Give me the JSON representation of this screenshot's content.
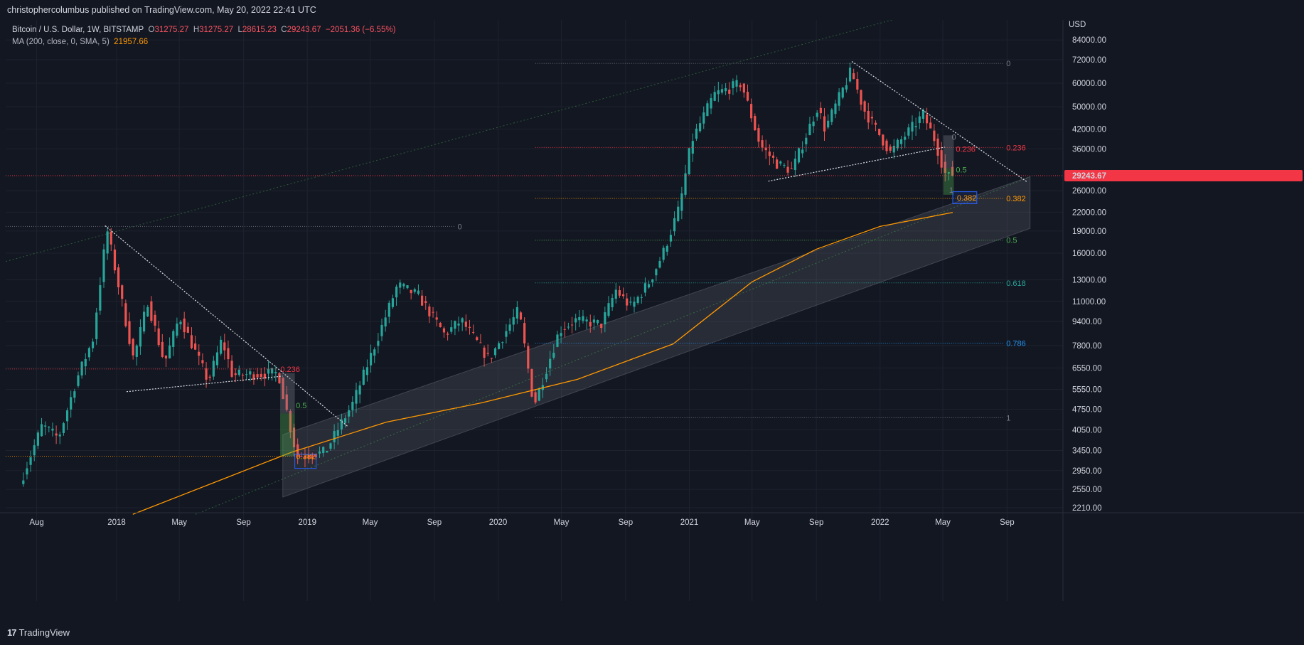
{
  "header": {
    "publisher_line": "christophercolumbus published on TradingView.com, May 20, 2022 22:41 UTC"
  },
  "legend": {
    "symbol_line": "Bitcoin / U.S. Dollar, 1W, BITSTAMP",
    "open_label": "O",
    "open": "31275.27",
    "high_label": "H",
    "high": "31275.27",
    "low_label": "L",
    "low": "28615.23",
    "close_label": "C",
    "close": "29243.67",
    "change": "−2051.36 (−6.55%)",
    "ma_label": "MA (200, close, 0, SMA, 5)",
    "ma_value": "21957.66"
  },
  "footer": {
    "logo_text": "TradingView",
    "logo_mark": "17"
  },
  "colors": {
    "background": "#131722",
    "up": "#26a69a",
    "down": "#ef5350",
    "ma": "#ff9800",
    "price_tag": "#f23645"
  },
  "chart_data": {
    "type": "candlestick",
    "title": "Bitcoin / U.S. Dollar, 1W, BITSTAMP",
    "currency_label": "USD",
    "scale": "log",
    "ylim": [
      2100,
      95000
    ],
    "y_ticks": [
      "84000.00",
      "72000.00",
      "60000.00",
      "50000.00",
      "42000.00",
      "36000.00",
      "26000.00",
      "22000.00",
      "19000.00",
      "16000.00",
      "13000.00",
      "11000.00",
      "9400.00",
      "7800.00",
      "6550.00",
      "5550.00",
      "4750.00",
      "4050.00",
      "3450.00",
      "2950.00",
      "2550.00",
      "2210.00"
    ],
    "x_ticks": [
      "Aug",
      "2018",
      "May",
      "Sep",
      "2019",
      "May",
      "Sep",
      "2020",
      "May",
      "Sep",
      "2021",
      "May",
      "Sep",
      "2022",
      "May",
      "Sep"
    ],
    "last_price": "29243.67",
    "grid": true,
    "price_anchors": [
      {
        "date": "2017-07-01",
        "price": 2600
      },
      {
        "date": "2017-08-15",
        "price": 4200
      },
      {
        "date": "2017-09-15",
        "price": 3800
      },
      {
        "date": "2017-10-20",
        "price": 6000
      },
      {
        "date": "2017-11-20",
        "price": 8200
      },
      {
        "date": "2017-12-17",
        "price": 19300
      },
      {
        "date": "2018-02-06",
        "price": 7000
      },
      {
        "date": "2018-03-05",
        "price": 11000
      },
      {
        "date": "2018-04-06",
        "price": 6800
      },
      {
        "date": "2018-05-05",
        "price": 9800
      },
      {
        "date": "2018-06-29",
        "price": 5900
      },
      {
        "date": "2018-07-25",
        "price": 8200
      },
      {
        "date": "2018-08-14",
        "price": 6200
      },
      {
        "date": "2018-11-10",
        "price": 6300
      },
      {
        "date": "2018-12-15",
        "price": 3300
      },
      {
        "date": "2019-02-07",
        "price": 3400
      },
      {
        "date": "2019-04-02",
        "price": 5000
      },
      {
        "date": "2019-06-26",
        "price": 12500
      },
      {
        "date": "2019-08-05",
        "price": 11500
      },
      {
        "date": "2019-09-24",
        "price": 8500
      },
      {
        "date": "2019-10-26",
        "price": 9500
      },
      {
        "date": "2019-12-18",
        "price": 7000
      },
      {
        "date": "2020-02-13",
        "price": 10300
      },
      {
        "date": "2020-03-13",
        "price": 4900
      },
      {
        "date": "2020-05-01",
        "price": 8800
      },
      {
        "date": "2020-06-01",
        "price": 9500
      },
      {
        "date": "2020-07-20",
        "price": 9200
      },
      {
        "date": "2020-08-17",
        "price": 12000
      },
      {
        "date": "2020-09-15",
        "price": 10500
      },
      {
        "date": "2020-10-21",
        "price": 12900
      },
      {
        "date": "2020-11-15",
        "price": 16000
      },
      {
        "date": "2020-12-17",
        "price": 23000
      },
      {
        "date": "2021-01-08",
        "price": 38000
      },
      {
        "date": "2021-02-21",
        "price": 55000
      },
      {
        "date": "2021-04-14",
        "price": 60000
      },
      {
        "date": "2021-05-20",
        "price": 37000
      },
      {
        "date": "2021-06-22",
        "price": 32000
      },
      {
        "date": "2021-07-20",
        "price": 30500
      },
      {
        "date": "2021-09-07",
        "price": 50000
      },
      {
        "date": "2021-09-21",
        "price": 42000
      },
      {
        "date": "2021-11-10",
        "price": 66000
      },
      {
        "date": "2021-12-04",
        "price": 49000
      },
      {
        "date": "2022-01-24",
        "price": 35000
      },
      {
        "date": "2022-03-28",
        "price": 47000
      },
      {
        "date": "2022-04-18",
        "price": 39000
      },
      {
        "date": "2022-05-12",
        "price": 28615
      },
      {
        "date": "2022-05-20",
        "price": 29243.67
      }
    ],
    "ma200": [
      {
        "date": "2018-02-01",
        "price": 2100
      },
      {
        "date": "2018-08-01",
        "price": 2800
      },
      {
        "date": "2018-12-01",
        "price": 3400
      },
      {
        "date": "2019-06-01",
        "price": 4300
      },
      {
        "date": "2019-12-01",
        "price": 5000
      },
      {
        "date": "2020-06-01",
        "price": 6000
      },
      {
        "date": "2020-12-01",
        "price": 7900
      },
      {
        "date": "2021-05-01",
        "price": 12800
      },
      {
        "date": "2021-09-01",
        "price": 16500
      },
      {
        "date": "2022-01-01",
        "price": 19700
      },
      {
        "date": "2022-05-20",
        "price": 21957.66
      }
    ],
    "fib_levels_2022": [
      {
        "label": "0",
        "price": 70000,
        "color": "#787b86"
      },
      {
        "label": "0.236",
        "price": 36400,
        "color": "#f23645"
      },
      {
        "label": "0.382",
        "price": 24500,
        "color": "#ff9800"
      },
      {
        "label": "0.5",
        "price": 17700,
        "color": "#4caf50"
      },
      {
        "label": "0.618",
        "price": 12700,
        "color": "#26a69a"
      },
      {
        "label": "0.786",
        "price": 7950,
        "color": "#2196f3"
      },
      {
        "label": "1",
        "price": 4450,
        "color": "#787b86"
      }
    ],
    "fib_levels_2018": [
      {
        "label": "0",
        "price": 19700,
        "color": "#787b86"
      },
      {
        "label": "0.236",
        "price": 6500,
        "color": "#f23645"
      },
      {
        "label": "0.382",
        "price": 3300,
        "color": "#ff9800"
      }
    ],
    "projection_labels": [
      {
        "label": "0",
        "color": "#787b86"
      },
      {
        "label": "0.236",
        "color": "#f23645"
      },
      {
        "label": "0.5",
        "color": "#4caf50"
      },
      {
        "label": "0.382",
        "color": "#ff9800"
      },
      {
        "label": "1",
        "color": "#787b86"
      },
      {
        "label": "0.5",
        "color": "#4caf50"
      }
    ]
  }
}
